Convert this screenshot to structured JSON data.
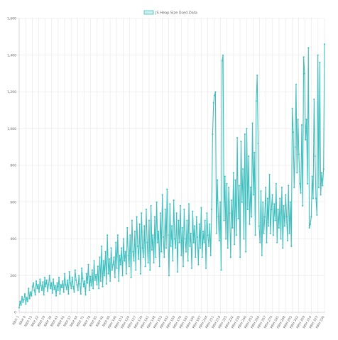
{
  "chart_data": {
    "type": "line",
    "title": "",
    "legend": {
      "position": "top",
      "label": "JS Heap Size Used Data"
    },
    "series": [
      {
        "name": "JS Heap Size Used Data",
        "color": "#3fbfbf",
        "y": [
          25,
          60,
          40,
          85,
          55,
          70,
          100,
          45,
          80,
          60,
          130,
          75,
          110,
          90,
          140,
          160,
          120,
          95,
          170,
          130,
          150,
          110,
          180,
          145,
          120,
          165,
          95,
          190,
          140,
          175,
          115,
          150,
          200,
          130,
          160,
          105,
          180,
          125,
          145,
          90,
          160,
          120,
          190,
          100,
          150,
          135,
          170,
          110,
          210,
          150,
          125,
          175,
          100,
          220,
          160,
          130,
          190,
          140,
          110,
          230,
          175,
          150,
          120,
          200,
          155,
          100,
          240,
          185,
          140,
          170,
          95,
          210,
          160,
          260,
          120,
          195,
          145,
          230,
          130,
          280,
          175,
          205,
          150,
          250,
          130,
          300,
          170,
          360,
          140,
          280,
          200,
          330,
          155,
          420,
          210,
          290,
          170,
          350,
          230,
          260,
          300,
          190,
          380,
          240,
          420,
          170,
          310,
          260,
          350,
          200,
          400,
          280,
          330,
          210,
          460,
          310,
          250,
          420,
          190,
          500,
          330,
          280,
          440,
          230,
          520,
          360,
          290,
          480,
          210,
          540,
          350,
          300,
          470,
          250,
          560,
          380,
          270,
          500,
          230,
          580,
          340,
          420,
          270,
          520,
          300,
          600,
          380,
          440,
          250,
          540,
          330,
          640,
          410,
          300,
          560,
          350,
          670,
          420,
          200,
          590,
          360,
          470,
          280,
          610,
          400,
          350,
          540,
          220,
          500,
          380,
          580,
          310,
          460,
          250,
          560,
          400,
          330,
          500,
          280,
          590,
          360,
          430,
          240,
          550,
          380,
          470,
          300,
          520,
          410,
          260,
          480,
          350,
          570,
          300,
          440,
          380,
          500,
          240,
          540,
          420,
          360,
          480,
          310,
          560,
          970,
          1140,
          1180,
          1200,
          430,
          720,
          520,
          390,
          600,
          230,
          1370,
          1400,
          500,
          740,
          400,
          700,
          350,
          680,
          540,
          300,
          610,
          460,
          760,
          370,
          720,
          420,
          950,
          510,
          690,
          300,
          930,
          600,
          780,
          400,
          970,
          330,
          1000,
          560,
          850,
          480,
          680,
          520,
          1030,
          640,
          870,
          420,
          1150,
          1290,
          920,
          470,
          380,
          660,
          310,
          600,
          430,
          520,
          680,
          380,
          620,
          470,
          750,
          430,
          560,
          640,
          420,
          590,
          500,
          700,
          380,
          560,
          460,
          620,
          400,
          680,
          350,
          580,
          470,
          640,
          520,
          390,
          690,
          430,
          600,
          360,
          1110,
          980,
          680,
          900,
          1240,
          760,
          1050,
          860,
          700,
          650,
          1020,
          580,
          1390,
          1300,
          940,
          1050,
          700,
          1440,
          460,
          480,
          520,
          740,
          620,
          1160,
          850,
          620,
          530,
          1400,
          680,
          1360,
          640,
          760,
          690,
          780,
          1460
        ]
      }
    ],
    "x_labels": [
      "RRH 1",
      "RRH 8",
      "RRH 15",
      "RRH 22",
      "RRH 29",
      "RRH 36",
      "RRH 43",
      "RRH 50",
      "RRH 57",
      "RRH 64",
      "RRH 71",
      "RRH 78",
      "RRH 85",
      "RRH 92",
      "RRH 99",
      "RRH 106",
      "RRH 113",
      "RRH 120",
      "RRH 127",
      "RRH 134",
      "RRH 141",
      "RRH 148",
      "RRH 155",
      "RRH 162",
      "RRH 169",
      "RRH 176",
      "RRH 183",
      "RRH 190",
      "RRH 197",
      "RRH 204",
      "RRH 211",
      "RRH 218",
      "RRH 225",
      "RRH 232",
      "RRH 239",
      "RRH 246",
      "RRH 253",
      "RRH 260",
      "RRH 267",
      "RRH 274",
      "RRH 281",
      "RRH 288",
      "RRH 295",
      "RRH 302",
      "RRH 309",
      "RRH 316",
      "RRH 323",
      "RRH 330"
    ],
    "ylim": [
      0,
      1600
    ],
    "y_ticks": [
      0,
      200,
      400,
      600,
      800,
      1000,
      1200,
      1400,
      1600
    ],
    "y_tick_labels": [
      "0",
      "200",
      "400",
      "600",
      "800",
      "1,000",
      "1,200",
      "1,400",
      "1,600"
    ],
    "grid": true
  }
}
